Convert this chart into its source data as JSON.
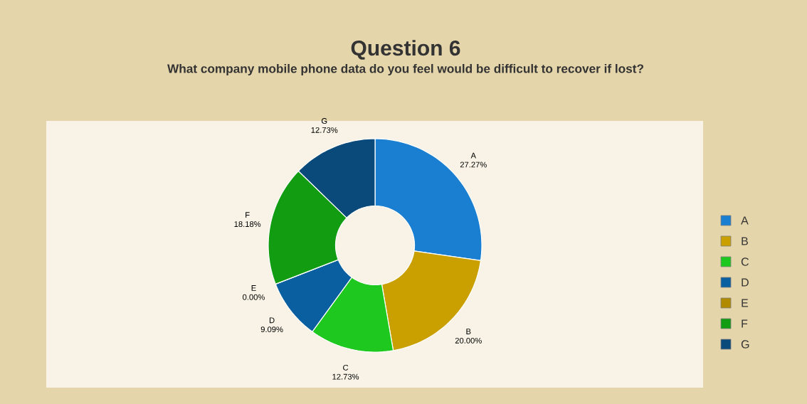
{
  "chart_data": {
    "type": "donut",
    "title": "Question 6",
    "subtitle": "What company mobile phone data do you feel would be difficult to recover if lost?",
    "categories": [
      "A",
      "B",
      "C",
      "D",
      "E",
      "F",
      "G"
    ],
    "values": [
      27.27,
      20.0,
      12.73,
      9.09,
      0.0,
      18.18,
      12.73
    ],
    "value_labels": [
      "27.27%",
      "20.00%",
      "12.73%",
      "9.09%",
      "0.00%",
      "18.18%",
      "12.73%"
    ],
    "colors": [
      "#1a7fd0",
      "#c9a000",
      "#1fc81f",
      "#0a5fa0",
      "#b08a00",
      "#129c12",
      "#0a4a7a"
    ],
    "legend": "right"
  }
}
